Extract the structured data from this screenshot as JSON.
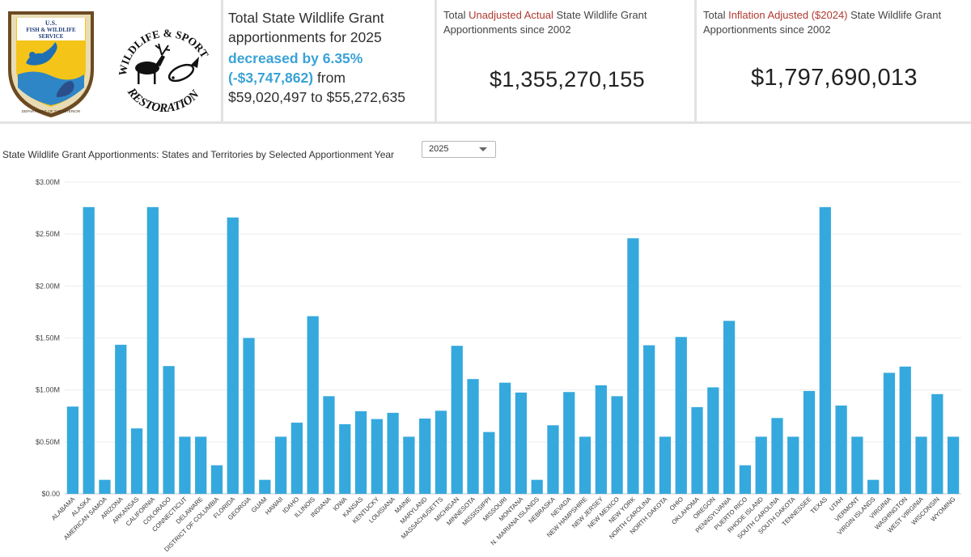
{
  "logos": {
    "usfws": {
      "line1": "U.S.",
      "line2": "FISH & WILDLIFE",
      "line3": "SERVICE",
      "ring_text": "DEPARTMENT OF THE INTERIOR"
    },
    "wsfr": {
      "arc_top": "WILDLIFE & SPORT FISH",
      "arc_bottom": "RESTORATION"
    }
  },
  "summary": {
    "line1": "Total State Wildlife Grant",
    "line2": "apportionments  for 2025",
    "line3": "decreased by 6.35%",
    "line4_hl": "(-$3,747,862)",
    "line4_plain": " from",
    "line5": "$59,020,497 to $55,272,635"
  },
  "kpi_unadjusted": {
    "label_pre": "Total ",
    "label_accent": "Unadjusted Actual",
    "label_post": " State Wildlife Grant Apportionments since 2002",
    "value": "$1,355,270,155"
  },
  "kpi_adjusted": {
    "label_pre": "Total ",
    "label_accent": "Inflation Adjusted ($2024)",
    "label_post": " State Wildlife Grant Apportionments since 2002",
    "value": "$1,797,690,013"
  },
  "chart_header": {
    "title": "State Wildlife Grant Apportionments: States and Territories by Selected Apportionment Year",
    "year_selected": "2025"
  },
  "colors": {
    "bar": "#35a9dd",
    "accent_text": "#b03a30",
    "highlight_text": "#3aa2d6",
    "grid": "#ececec"
  },
  "chart_data": {
    "type": "bar",
    "title": "State Wildlife Grant Apportionments: States and Territories by Selected Apportionment Year",
    "xlabel": "",
    "ylabel": "",
    "ylim": [
      0,
      3000000
    ],
    "yticks": [
      0,
      500000,
      1000000,
      1500000,
      2000000,
      2500000,
      3000000
    ],
    "ytick_labels": [
      "$0.00",
      "$0.50M",
      "$1.00M",
      "$1.50M",
      "$2.00M",
      "$2.50M",
      "$3.00M"
    ],
    "grid": true,
    "categories": [
      "ALABAMA",
      "ALASKA",
      "AMERICAN SAMOA",
      "ARIZONA",
      "ARKANSAS",
      "CALIFORNIA",
      "COLORADO",
      "CONNECTICUT",
      "DELAWARE",
      "DISTRICT OF COLUMBIA",
      "FLORIDA",
      "GEORGIA",
      "GUAM",
      "HAWAII",
      "IDAHO",
      "ILLINOIS",
      "INDIANA",
      "IOWA",
      "KANSAS",
      "KENTUCKY",
      "LOUISIANA",
      "MAINE",
      "MARYLAND",
      "MASSACHUSETTS",
      "MICHIGAN",
      "MINNESOTA",
      "MISSISSIPPI",
      "MISSOURI",
      "MONTANA",
      "N. MARIANA ISLANDS",
      "NEBRASKA",
      "NEVADA",
      "NEW HAMPSHIRE",
      "NEW JERSEY",
      "NEW MEXICO",
      "NEW YORK",
      "NORTH CAROLINA",
      "NORTH DAKOTA",
      "OHIO",
      "OKLAHOMA",
      "OREGON",
      "PENNSYLVANIA",
      "PUERTO RICO",
      "RHODE ISLAND",
      "SOUTH CAROLINA",
      "SOUTH DAKOTA",
      "TENNESSEE",
      "TEXAS",
      "UTAH",
      "VERMONT",
      "VIRGIN ISLANDS",
      "VIRGINIA",
      "WASHINGTON",
      "WEST VIRGINIA",
      "WISCONSIN",
      "WYOMING"
    ],
    "values": [
      840000,
      2760000,
      135000,
      1435000,
      630000,
      2760000,
      1230000,
      550000,
      550000,
      275000,
      2660000,
      1500000,
      135000,
      550000,
      685000,
      1710000,
      940000,
      670000,
      795000,
      720000,
      780000,
      550000,
      725000,
      800000,
      1425000,
      1105000,
      595000,
      1070000,
      975000,
      135000,
      660000,
      980000,
      550000,
      1045000,
      940000,
      2460000,
      1430000,
      550000,
      1510000,
      835000,
      1025000,
      1665000,
      275000,
      550000,
      730000,
      550000,
      990000,
      2760000,
      850000,
      550000,
      135000,
      1165000,
      1225000,
      550000,
      960000,
      550000
    ]
  }
}
